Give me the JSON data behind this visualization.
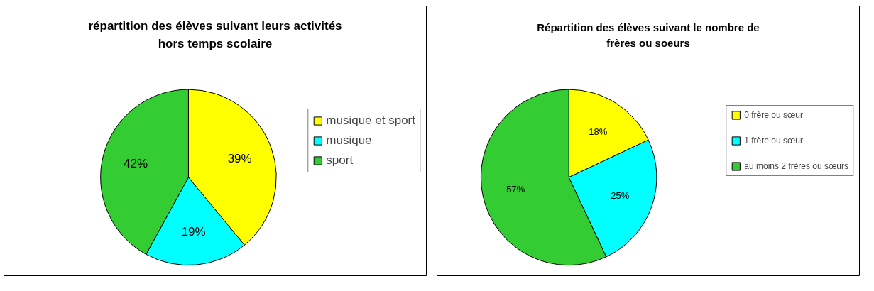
{
  "chart_data": [
    {
      "type": "pie",
      "title": "répartition des élèves suivant leurs activités hors temps scolaire",
      "categories": [
        "musique et sport",
        "musique",
        "sport"
      ],
      "values": [
        39,
        19,
        42
      ],
      "value_labels": [
        "39%",
        "19%",
        "42%"
      ],
      "colors": [
        "#ffff00",
        "#00ffff",
        "#33cc33"
      ],
      "legend": "right"
    },
    {
      "type": "pie",
      "title": "Répartition des élèves suivant le nombre de frères ou soeurs",
      "categories": [
        "0 frère ou sœur",
        "1 frère ou sœur",
        "au moins 2 frères ou sœurs"
      ],
      "values": [
        18,
        25,
        57
      ],
      "value_labels": [
        "18%",
        "25%",
        "57%"
      ],
      "colors": [
        "#ffff00",
        "#00ffff",
        "#33cc33"
      ],
      "legend": "right"
    }
  ]
}
